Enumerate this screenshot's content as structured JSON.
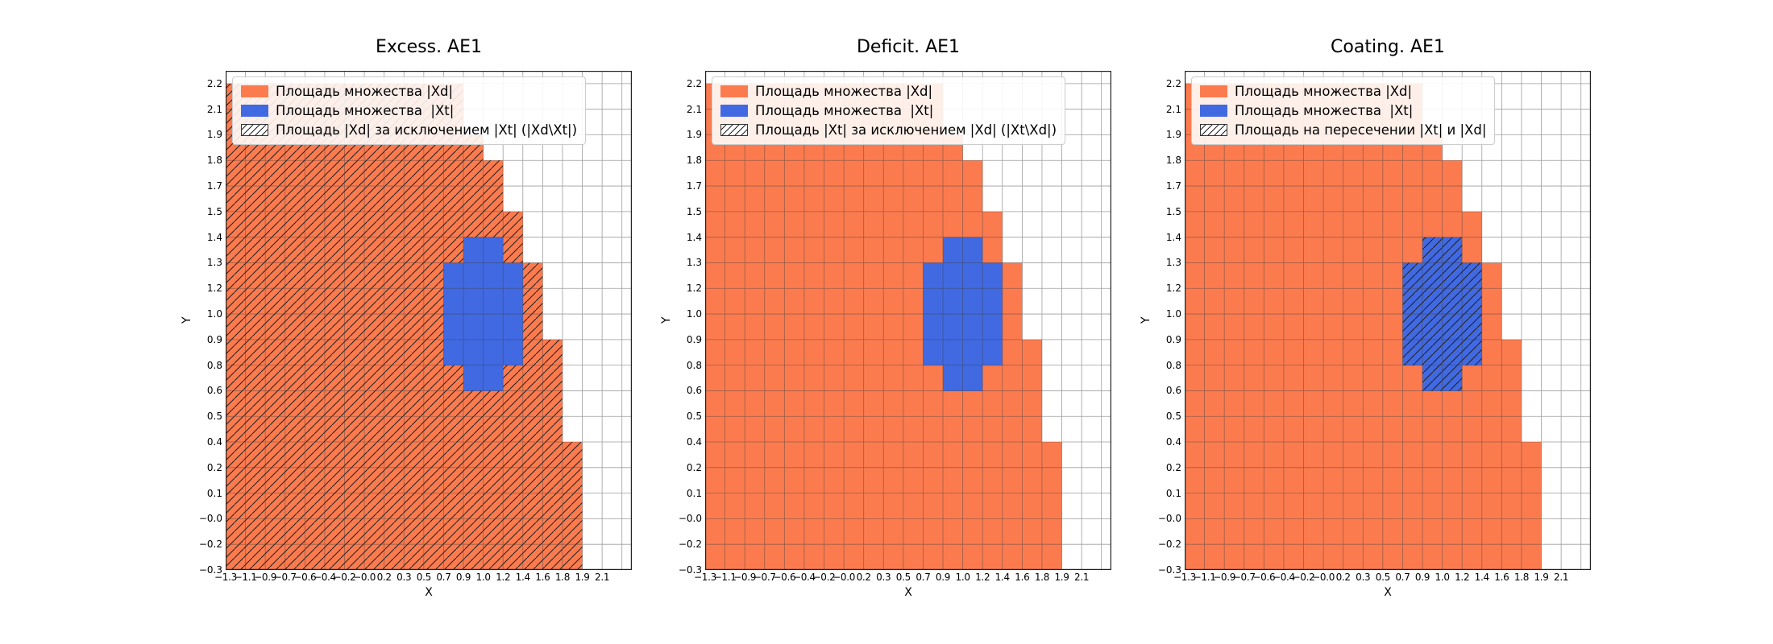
{
  "chart_data": {
    "type": "heatmap",
    "shared": {
      "xlabel": "X",
      "ylabel": "Y",
      "x_tick_labels": [
        "−1.3",
        "−1.1",
        "−0.9",
        "−0.7",
        "−0.6",
        "−0.4",
        "−0.2",
        "−0.0",
        "0.2",
        "0.3",
        "0.5",
        "0.7",
        "0.9",
        "1.0",
        "1.2",
        "1.4",
        "1.6",
        "1.8",
        "1.9",
        "2.1"
      ],
      "y_tick_labels": [
        "2.2",
        "2.1",
        "1.9",
        "1.8",
        "1.7",
        "1.5",
        "1.4",
        "1.3",
        "1.2",
        "1.0",
        "0.9",
        "0.8",
        "0.6",
        "0.5",
        "0.4",
        "0.2",
        "0.1",
        "−0.0",
        "−0.2",
        "−0.3"
      ],
      "n_rows": 19,
      "n_cols": 19,
      "xd_row_col_max": [
        11,
        11,
        12,
        13,
        13,
        14,
        14,
        15,
        15,
        15,
        16,
        16,
        16,
        16,
        17,
        17,
        17,
        17,
        17
      ],
      "xt_rows": [
        [
          6,
          12,
          13
        ],
        [
          7,
          11,
          14
        ],
        [
          8,
          11,
          14
        ],
        [
          9,
          11,
          14
        ],
        [
          10,
          11,
          14
        ],
        [
          11,
          12,
          13
        ]
      ],
      "colors": {
        "xd": "#fb7b4f",
        "xt": "#4169e1",
        "hatch": "#1f1f1f",
        "grid": "#3d3d3d",
        "legend_border": "#cccccc",
        "background": "#ffffff"
      }
    },
    "plots": [
      {
        "title": "Excess. AE1",
        "hatch_region": "xd_minus_xt",
        "legend": [
          "Площадь множества |Xd|",
          "Площадь множества  |Xt|",
          "Площадь |Xd| за исключением |Xt| (|Xd\\Xt|)"
        ]
      },
      {
        "title": "Deficit. AE1",
        "hatch_region": "none",
        "legend": [
          "Площадь множества |Xd|",
          "Площадь множества  |Xt|",
          "Площадь |Xt| за исключением |Xd| (|Xt\\Xd|)"
        ]
      },
      {
        "title": "Coating. AE1",
        "hatch_region": "xt_intersect_xd",
        "legend": [
          "Площадь множества |Xd|",
          "Площадь множества  |Xt|",
          "Площадь на пересечении |Xt| и |Xd|"
        ]
      }
    ]
  }
}
